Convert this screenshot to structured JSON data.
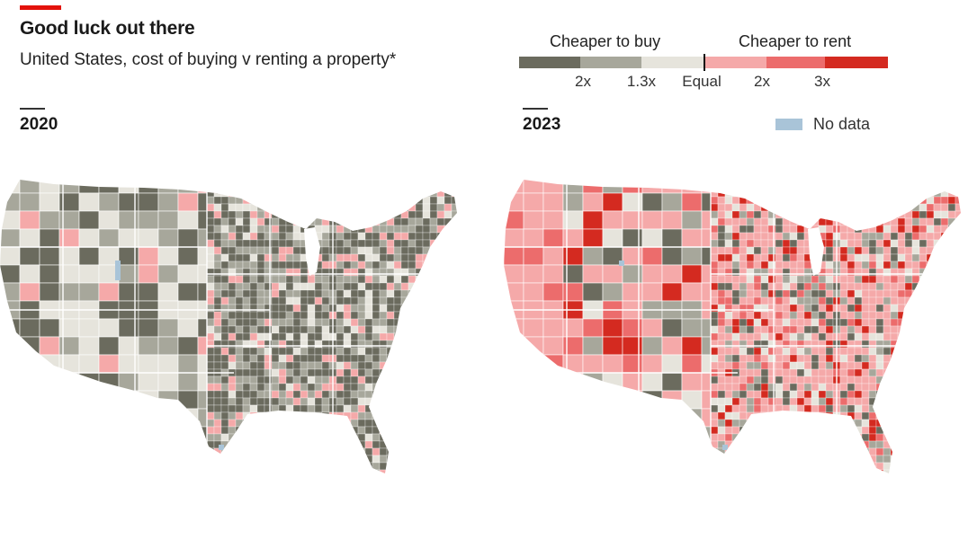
{
  "header": {
    "title": "Good luck out there",
    "subtitle": "United States, cost of buying v renting a property*",
    "accent_color": "#e3120b"
  },
  "legend": {
    "buy_heading": "Cheaper to buy",
    "rent_heading": "Cheaper to rent",
    "ticks": [
      "2x",
      "1.3x",
      "Equal",
      "2x",
      "3x"
    ],
    "colors": {
      "buy_2x": "#6b6b5e",
      "buy_13x": "#a7a79b",
      "equal_buy": "#e6e4dc",
      "rent_mild": "#f5a9a9",
      "rent_2x": "#ec6c6c",
      "rent_3x": "#d42a20"
    },
    "no_data_label": "No data",
    "no_data_color": "#a9c4d8"
  },
  "panels": [
    {
      "year": "2020",
      "predominant": "buy"
    },
    {
      "year": "2023",
      "predominant": "rent"
    }
  ]
}
